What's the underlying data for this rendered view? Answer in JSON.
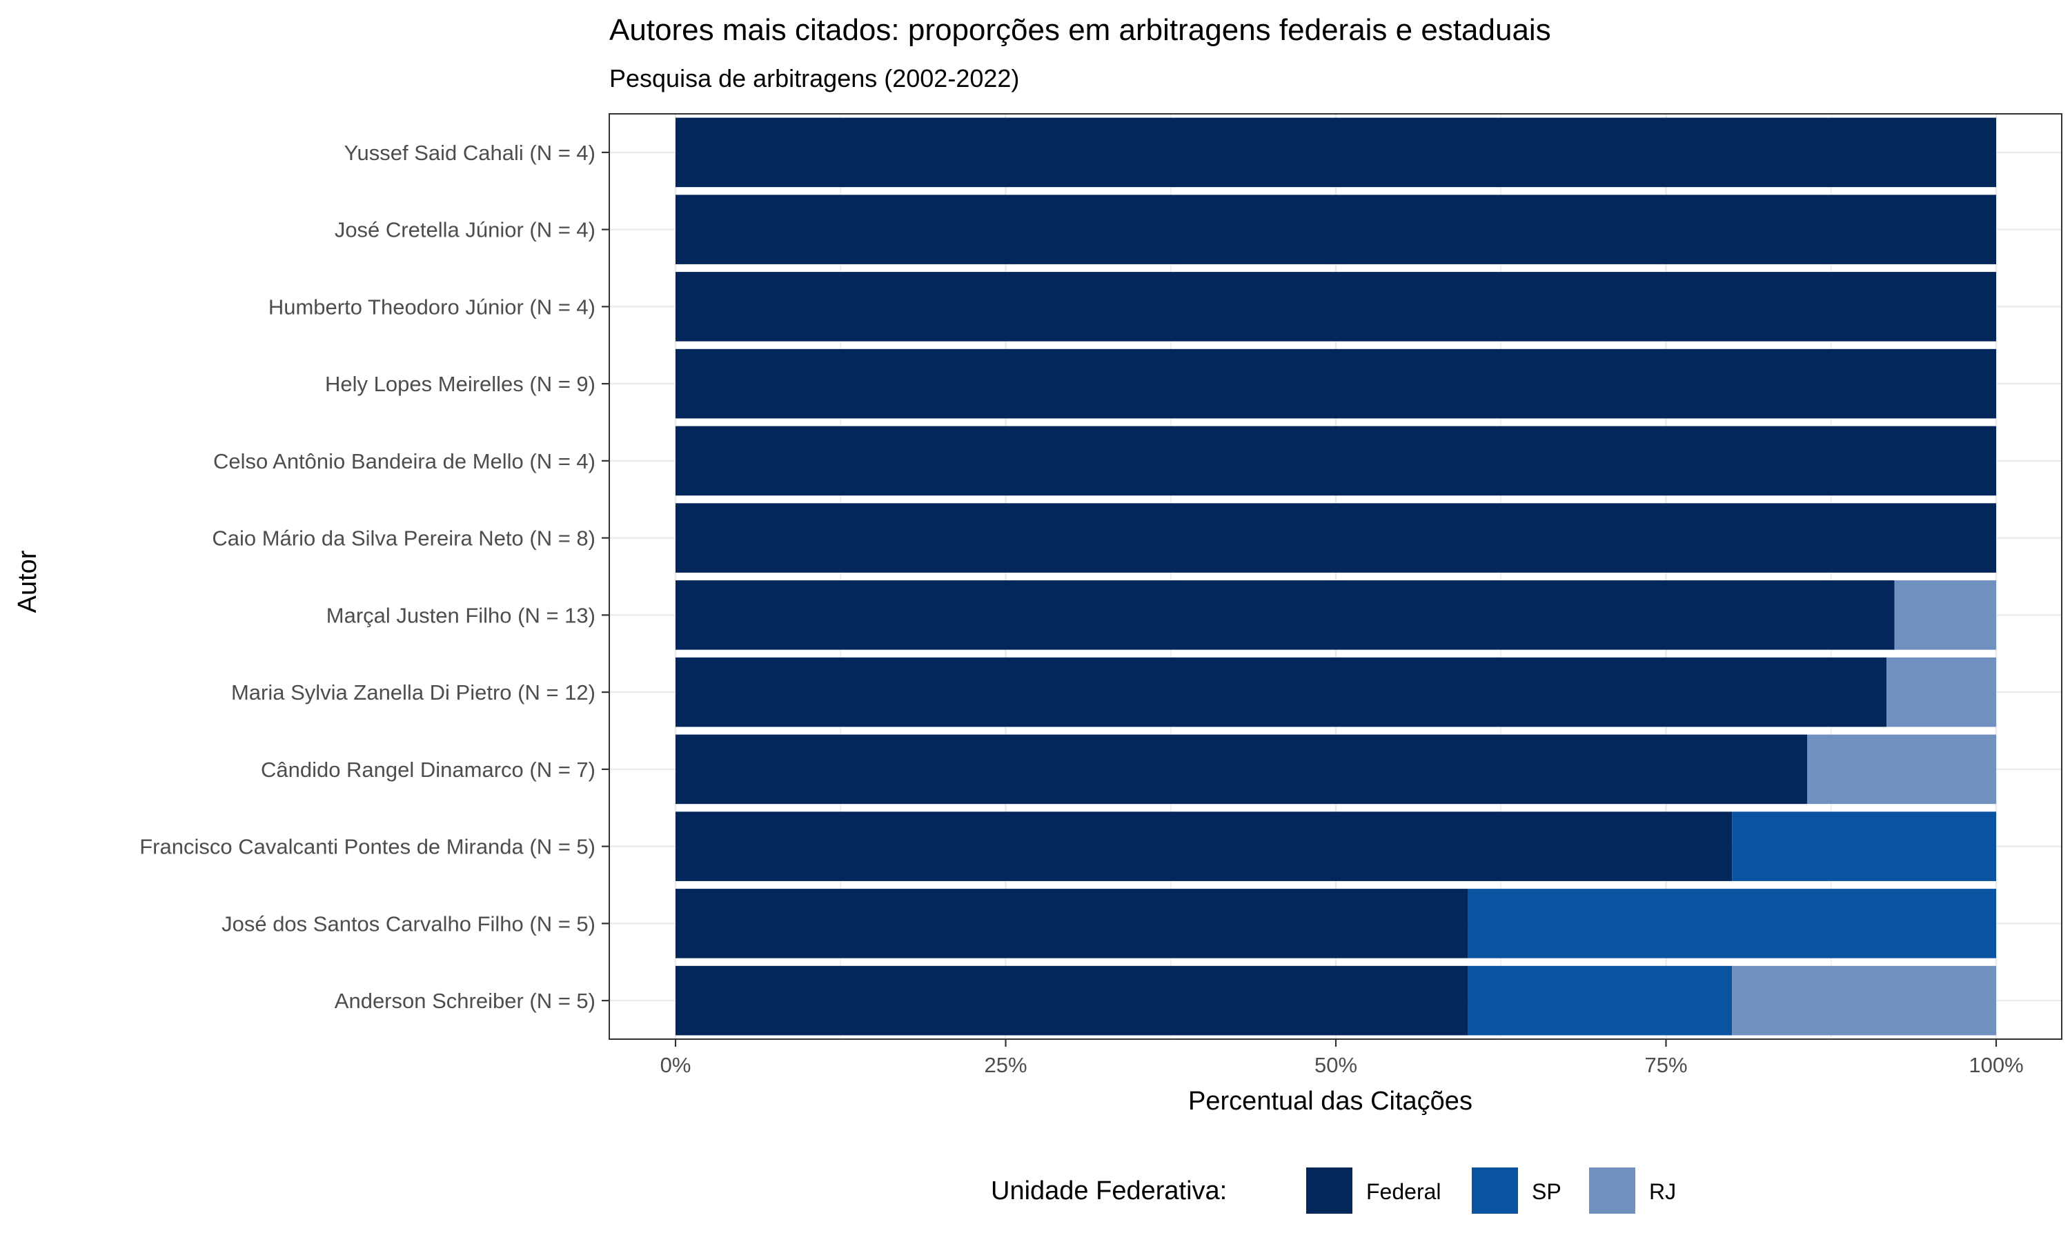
{
  "chart_data": {
    "type": "bar",
    "orientation": "horizontal",
    "stacked": true,
    "title": "Autores mais citados: proporções em arbitragens federais e estaduais",
    "subtitle": "Pesquisa de arbitragens (2002-2022)",
    "xlabel": "Percentual das Citações",
    "ylabel": "Autor",
    "xlim": [
      0,
      100
    ],
    "x_ticks": [
      "0%",
      "25%",
      "50%",
      "75%",
      "100%"
    ],
    "x_tick_values": [
      0,
      25,
      50,
      75,
      100
    ],
    "grid": true,
    "legend_title": "Unidade Federativa:",
    "legend_position": "bottom",
    "categories": [
      "Yussef Said Cahali (N = 4)",
      "José Cretella Júnior (N = 4)",
      "Humberto Theodoro Júnior (N = 4)",
      "Hely Lopes Meirelles (N = 9)",
      "Celso Antônio Bandeira de Mello (N = 4)",
      "Caio Mário da Silva Pereira Neto (N = 8)",
      "Marçal Justen Filho (N = 13)",
      "Maria Sylvia Zanella Di Pietro (N = 12)",
      "Cândido Rangel Dinamarco (N = 7)",
      "Francisco Cavalcanti Pontes de Miranda (N = 5)",
      "José dos Santos Carvalho Filho (N = 5)",
      "Anderson Schreiber (N = 5)"
    ],
    "series": [
      {
        "name": "Federal",
        "color": "#03275a",
        "values": [
          100,
          100,
          100,
          100,
          100,
          100,
          92.3,
          91.7,
          85.7,
          80,
          60,
          60
        ]
      },
      {
        "name": "SP",
        "color": "#0a53a0",
        "values": [
          0,
          0,
          0,
          0,
          0,
          0,
          0,
          0,
          0,
          20,
          40,
          20
        ]
      },
      {
        "name": "RJ",
        "color": "#7090c0",
        "values": [
          0,
          0,
          0,
          0,
          0,
          0,
          7.7,
          8.3,
          14.3,
          0,
          0,
          20
        ]
      }
    ]
  }
}
